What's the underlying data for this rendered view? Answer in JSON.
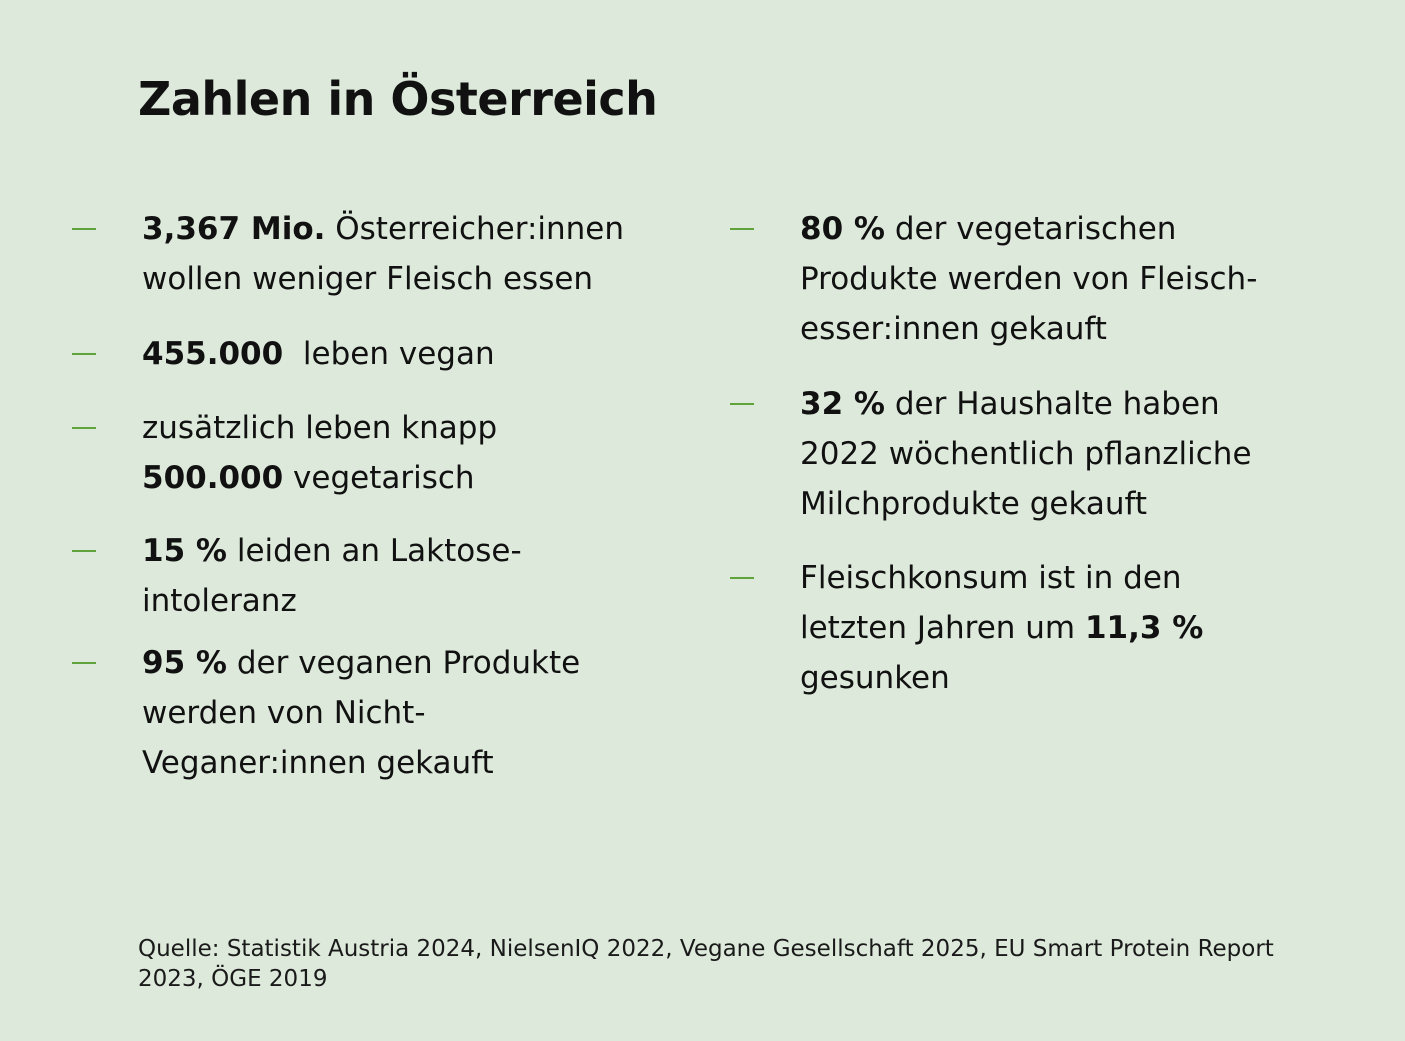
{
  "title": "Zahlen in Österreich",
  "accent_color": "#5fa33a",
  "background_color": "#ddeadb",
  "bullet_icon": "dash-icon",
  "left_items": [
    {
      "line1_bold": "3,367 Mio.",
      "line1_text": " Österreicher:innen",
      "line2_text": "wollen weniger Fleisch essen"
    },
    {
      "line1_bold": "455.000",
      "line1_text": "  leben vegan"
    },
    {
      "line1_text": "zusätzlich leben knapp",
      "line2_bold": "500.000",
      "line2_text": " vegetarisch"
    },
    {
      "line1_bold": "15 %",
      "line1_text": " leiden an Laktose-",
      "line2_text": "intoleranz"
    },
    {
      "line1_bold": "95 %",
      "line1_text": " der veganen Produkte",
      "line2_text": "werden von Nicht-",
      "line3_text": "Veganer:innen gekauft"
    }
  ],
  "right_items": [
    {
      "line1_bold": "80 %",
      "line1_text": " der vegetarischen",
      "line2_text": "Produkte werden von Fleisch-",
      "line3_text": "esser:innen gekauft"
    },
    {
      "line1_bold": "32 %",
      "line1_text": " der Haushalte haben",
      "line2_text": "2022 wöchentlich pflanzliche",
      "line3_text": "Milchprodukte gekauft"
    },
    {
      "line1_text": "Fleischkonsum ist in den",
      "line2_text": "letzten Jahren um ",
      "line2_bold": "11,3 %",
      "line3_text": "gesunken"
    }
  ],
  "source": "Quelle: Statistik Austria 2024, NielsenIQ 2022, Vegane Gesellschaft 2025, EU Smart Protein Report 2023, ÖGE 2019"
}
